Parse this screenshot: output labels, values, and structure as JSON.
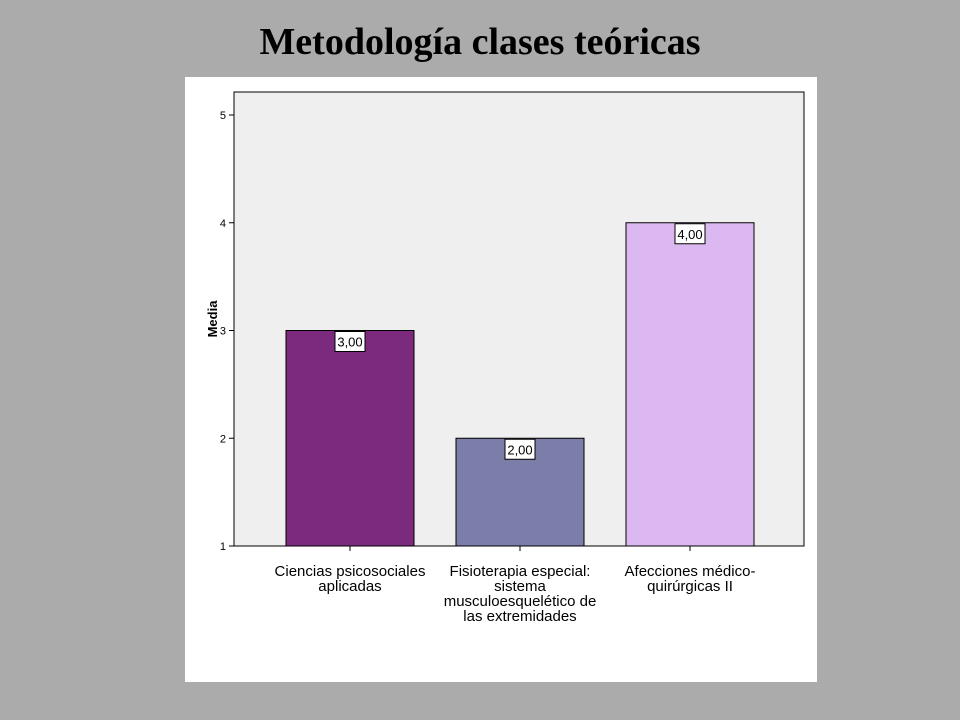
{
  "slide": {
    "title": "Metodología clases teóricas"
  },
  "chart_data": {
    "type": "bar",
    "title": "Metodología clases teóricas",
    "xlabel": "",
    "ylabel": "Media",
    "ylim": [
      1,
      5
    ],
    "yticks": [
      "1",
      "2",
      "3",
      "4",
      "5"
    ],
    "grid": false,
    "legend": "none",
    "categories": [
      [
        "Ciencias psicosociales",
        "aplicadas"
      ],
      [
        "Fisioterapia especial:",
        "sistema",
        "musculoesquelético de",
        "las extremidades"
      ],
      [
        "Afecciones médico-",
        "quirúrgicas II"
      ]
    ],
    "values": [
      3.0,
      2.0,
      4.0
    ],
    "value_labels": [
      "3,00",
      "2,00",
      "4,00"
    ],
    "colors": [
      "#7b2a7d",
      "#7c7da8",
      "#dcb8f0"
    ],
    "plot_background": "#efefef"
  }
}
